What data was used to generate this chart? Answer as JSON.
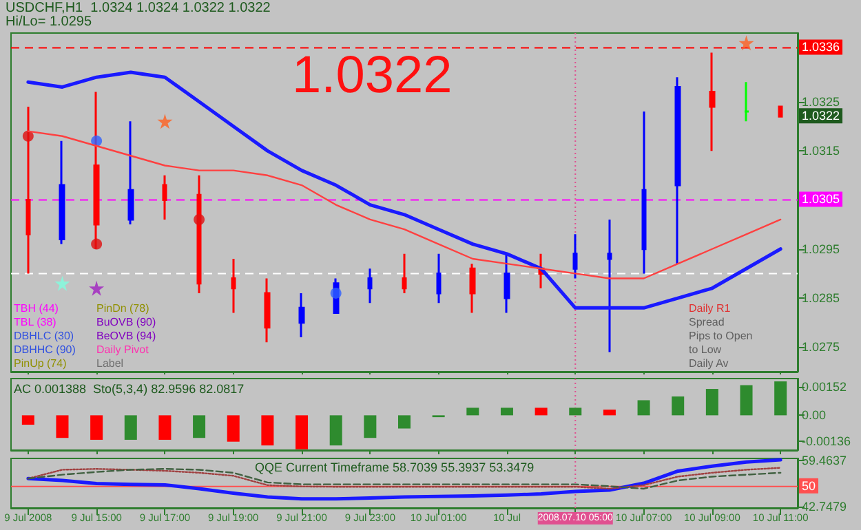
{
  "chart_data": [
    {
      "type": "candlestick",
      "title": "USDCHF,H1  1.0324 1.0324 1.0322 1.0322",
      "subtitle": "Hi/Lo= 1.0295",
      "categories": [
        "9 Jul 2008",
        null,
        "9 Jul 15:00",
        null,
        "9 Jul 17:00",
        null,
        "9 Jul 19:00",
        null,
        "9 Jul 21:00",
        null,
        "9 Jul 23:00",
        null,
        "10 Jul 01:00",
        null,
        "10 Jul",
        null,
        "2008.07.10 05:00",
        null,
        "10 Jul 07:00",
        null,
        "10 Jul 09:00",
        null,
        "10 Jul 11:00"
      ],
      "ohlc": [
        [
          1.0305,
          1.0324,
          1.029,
          1.0298
        ],
        [
          1.0297,
          1.0317,
          1.0296,
          1.0308
        ],
        [
          1.0312,
          1.0327,
          1.0295,
          1.03
        ],
        [
          1.0301,
          1.0321,
          1.03,
          1.0307
        ],
        [
          1.0308,
          1.031,
          1.0301,
          1.0305
        ],
        [
          1.0306,
          1.031,
          1.0286,
          1.0288
        ],
        [
          1.0289,
          1.0293,
          1.0282,
          1.0287
        ],
        [
          1.0286,
          1.0289,
          1.0276,
          1.0279
        ],
        [
          1.028,
          1.0286,
          1.0277,
          1.0283
        ],
        [
          1.0282,
          1.0289,
          1.0282,
          1.0288
        ],
        [
          1.0287,
          1.0291,
          1.0284,
          1.0289
        ],
        [
          1.0289,
          1.0294,
          1.0286,
          1.0287
        ],
        [
          1.0286,
          1.0294,
          1.0284,
          1.029
        ],
        [
          1.0291,
          1.0292,
          1.0282,
          1.0286
        ],
        [
          1.0285,
          1.0294,
          1.0282,
          1.029
        ],
        [
          1.0291,
          1.0294,
          1.0287,
          1.029
        ],
        [
          1.0291,
          1.0298,
          1.0289,
          1.0294
        ],
        [
          1.0293,
          1.0301,
          1.0274,
          1.0294
        ],
        [
          1.0295,
          1.0323,
          1.029,
          1.0307
        ],
        [
          1.0308,
          1.033,
          1.0292,
          1.0328
        ],
        [
          1.0327,
          1.0335,
          1.0315,
          1.0324
        ],
        [
          1.0323,
          1.0329,
          1.0321,
          1.0323
        ],
        [
          1.0324,
          1.0324,
          1.0322,
          1.0322
        ]
      ],
      "colors": [
        "#ff0000",
        "#0000ff",
        "#ff0000",
        "#0000ff",
        "#ff0000",
        "#ff0000",
        "#ff0000",
        "#ff0000",
        "#0000ff",
        "#0000ff",
        "#0000ff",
        "#ff0000",
        "#0000ff",
        "#ff0000",
        "#0000ff",
        "#ff0000",
        "#0000ff",
        "#0000ff",
        "#0000ff",
        "#0000ff",
        "#ff0000",
        "#00ff00",
        "#ff0000"
      ],
      "series": [
        {
          "type": "line",
          "color": "#1a1aff",
          "values": [
            1.0329,
            1.0328,
            1.033,
            1.0331,
            1.033,
            1.0325,
            1.032,
            1.0315,
            1.0311,
            1.0308,
            1.0304,
            1.0302,
            1.0299,
            1.0296,
            1.0294,
            1.0291,
            1.0283,
            1.0283,
            1.0283,
            1.0285,
            1.0287,
            1.0291,
            1.0295
          ]
        },
        {
          "type": "line",
          "color": "#ff4040",
          "values": [
            1.0319,
            1.0318,
            1.0316,
            1.0314,
            1.0312,
            1.0311,
            1.0311,
            1.031,
            1.0308,
            1.0304,
            1.0301,
            1.0299,
            1.0296,
            1.0293,
            1.0292,
            1.0291,
            1.029,
            1.0289,
            1.0289,
            1.0292,
            1.0295,
            1.0298,
            1.0301
          ]
        },
        {
          "type": "scatter",
          "marker": "star",
          "values": [
            null,
            1.0288,
            1.0287,
            null,
            1.0321,
            null,
            null,
            null,
            null,
            null,
            null,
            null,
            null,
            null,
            null,
            null,
            null,
            null,
            null,
            null,
            null,
            1.0337,
            null
          ],
          "colors": [
            null,
            "#80ffe0",
            "#a020c0",
            null,
            "#ff6020",
            null,
            null,
            null,
            null,
            null,
            null,
            null,
            null,
            null,
            null,
            null,
            null,
            null,
            null,
            null,
            null,
            "#ff6020",
            null
          ]
        },
        {
          "type": "scatter",
          "marker": "circle",
          "color": "#e01010",
          "values": [
            1.0318,
            null,
            1.0296,
            null,
            null,
            1.0301,
            null,
            null,
            null,
            null,
            null,
            null,
            null,
            null,
            null,
            null,
            null,
            null,
            null,
            null,
            null,
            null,
            null
          ]
        },
        {
          "type": "scatter",
          "marker": "circle",
          "color": "#3060ff",
          "values": [
            null,
            null,
            1.0317,
            null,
            null,
            null,
            null,
            null,
            null,
            1.0286,
            null,
            null,
            null,
            null,
            null,
            null,
            null,
            null,
            null,
            null,
            null,
            null,
            null
          ]
        }
      ],
      "ylim": [
        1.027,
        1.0339
      ],
      "yticks": [
        1.0275,
        1.0285,
        1.0295,
        1.0315,
        1.0325
      ],
      "tick_labels": "y",
      "ref_lines": [
        {
          "axis": "y",
          "value": 1.0336,
          "label": "1.0336",
          "color": "#ff0000",
          "line_style": "dashed"
        },
        {
          "axis": "y",
          "value": 1.0305,
          "label": "1.0305",
          "color": "#ff00ff",
          "line_style": "dashed"
        },
        {
          "axis": "y",
          "value": 1.029,
          "label": null,
          "color": "#ffffff",
          "line_style": "dashed"
        },
        {
          "axis": "x",
          "value": "2008.07.10 05:00",
          "label": null,
          "color": "#e05090",
          "line_style": "dotted"
        }
      ],
      "annotations": [
        "1.0322",
        "TBH (44)",
        "TBL (38)",
        "DBHLC (30)",
        "DBHHC (90)",
        "PinUp (74)",
        "PinDn (78)",
        "BuOVB (90)",
        "BeOVB (94)",
        "Daily Pivot",
        "Label",
        "Daily R1",
        "Spread",
        "Pips to Open",
        "to Low",
        "Daily Av",
        {
          "text": "1.0322",
          "y": 1.0322
        }
      ]
    },
    {
      "type": "bar",
      "annotations": [
        "AC 0.001388  Sto(5,3,4) 82.9596 82.0817"
      ],
      "categories": [
        "9 Jul 2008",
        null,
        "9 Jul 15:00",
        null,
        "9 Jul 17:00",
        null,
        "9 Jul 19:00",
        null,
        "9 Jul 21:00",
        null,
        "9 Jul 23:00",
        null,
        "10 Jul 01:00",
        null,
        "10 Jul",
        null,
        "2008.07.10 05:00",
        null,
        "10 Jul 07:00",
        null,
        "10 Jul 09:00",
        null,
        "10 Jul 11:00"
      ],
      "values": [
        -0.0005,
        -0.0012,
        -0.0013,
        -0.0013,
        -0.0013,
        -0.0012,
        -0.0014,
        -0.0016,
        -0.0018,
        -0.0016,
        -0.0012,
        -0.0007,
        -0.0001,
        0.0004,
        0.0004,
        0.0004,
        0.0004,
        0.0003,
        0.0008,
        0.001,
        0.0014,
        0.0016,
        0.0018
      ],
      "colors": [
        "#ff0000",
        "#ff0000",
        "#ff0000",
        "#2e8b2e",
        "#ff0000",
        "#2e8b2e",
        "#ff0000",
        "#ff0000",
        "#ff0000",
        "#2e8b2e",
        "#2e8b2e",
        "#2e8b2e",
        "#2e8b2e",
        "#2e8b2e",
        "#2e8b2e",
        "#ff0000",
        "#2e8b2e",
        "#ff0000",
        "#2e8b2e",
        "#2e8b2e",
        "#2e8b2e",
        "#2e8b2e",
        "#2e8b2e"
      ],
      "ylim": [
        -0.00185,
        0.00195
      ],
      "yticks": [
        {
          "value": 0.00152,
          "label": "0.00152"
        },
        {
          "value": 0,
          "label": "0.00"
        },
        {
          "value": -0.00136,
          "label": "-0.00136"
        }
      ],
      "tick_labels": "y",
      "ref_lines": [
        {
          "axis": "x",
          "value": "2008.07.10 05:00",
          "label": null,
          "color": "#e05090",
          "line_style": "dotted"
        }
      ]
    },
    {
      "type": "line",
      "annotations": [
        "QQE Current Timeframe 58.7039 55.3937 53.3479"
      ],
      "categories": [
        "9 Jul 2008",
        null,
        "9 Jul 15:00",
        null,
        "9 Jul 17:00",
        null,
        "9 Jul 19:00",
        null,
        "9 Jul 21:00",
        null,
        "9 Jul 23:00",
        null,
        "10 Jul 01:00",
        null,
        "10 Jul",
        null,
        "2008.07.10 05:00",
        null,
        "10 Jul 07:00",
        null,
        "10 Jul 09:00",
        null,
        "10 Jul 11:00"
      ],
      "series": [
        {
          "color": "#1a1aff",
          "values": [
            52.9,
            52.2,
            51.1,
            50.8,
            50.6,
            49.2,
            47.6,
            46.2,
            45.5,
            45.5,
            45.8,
            46.2,
            46.4,
            46.6,
            46.9,
            47.3,
            48.2,
            48.7,
            51.2,
            55.6,
            57.4,
            58.9,
            59.7
          ]
        },
        {
          "color": "#a04040",
          "line_style": "dotted",
          "values": [
            52.9,
            56.1,
            56.4,
            56.1,
            55.7,
            55.0,
            53.9,
            50.5,
            50.0,
            49.9,
            49.9,
            49.9,
            49.9,
            49.9,
            49.9,
            49.9,
            49.9,
            49.2,
            50.5,
            53.6,
            55.0,
            56.1,
            56.8
          ]
        },
        {
          "color": "#406040",
          "line_style": "dashed",
          "values": [
            52.9,
            54.3,
            55.3,
            56.1,
            56.4,
            56.1,
            55.0,
            51.5,
            50.8,
            50.8,
            50.8,
            50.8,
            50.8,
            50.8,
            50.8,
            50.8,
            50.8,
            50.1,
            49.2,
            52.2,
            53.6,
            54.3,
            55.0
          ]
        }
      ],
      "ylim": [
        42.2,
        60.2
      ],
      "yticks": [
        59.4637,
        42.7479
      ],
      "ref_lines": [
        {
          "axis": "y",
          "value": 50,
          "label": "50",
          "color": "#ff5050",
          "line_style": "solid"
        },
        {
          "axis": "x",
          "value": "2008.07.10 05:00",
          "label": null,
          "color": "#e05090",
          "line_style": "dotted"
        }
      ]
    }
  ]
}
